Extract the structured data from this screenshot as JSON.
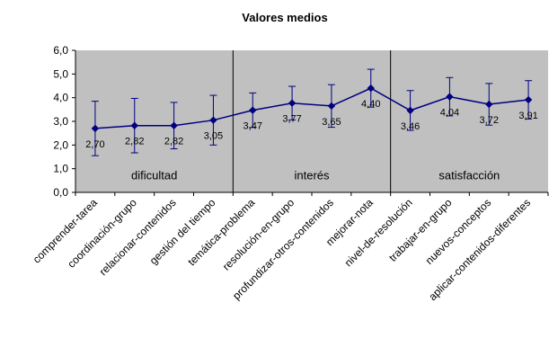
{
  "chart_data": {
    "type": "line",
    "title": "Valores medios",
    "xlabel": "",
    "ylabel": "",
    "ylim": [
      0,
      6
    ],
    "yticks": [
      "0,0",
      "1,0",
      "2,0",
      "3,0",
      "4,0",
      "5,0",
      "6,0"
    ],
    "ytick_values": [
      0,
      1,
      2,
      3,
      4,
      5,
      6
    ],
    "grid": false,
    "categories": [
      "comprender-tarea",
      "coordinación-grupo",
      "relacionar-contenidos",
      "gestión del tiempo",
      "temática-problema",
      "resolución-en-grupo",
      "profundizar-otros-contenidos",
      "mejorar-nota",
      "nivel-de-resolución",
      "trabajar-en-grupo",
      "nuevos-conceptos",
      "aplicar-contenidos-diferentes"
    ],
    "series": [
      {
        "values": [
          2.7,
          2.82,
          2.82,
          3.05,
          3.47,
          3.77,
          3.65,
          4.4,
          3.46,
          4.04,
          3.72,
          3.91
        ],
        "error_upper": [
          3.85,
          3.97,
          3.8,
          4.1,
          4.2,
          4.48,
          4.55,
          5.2,
          4.3,
          4.85,
          4.6,
          4.72
        ],
        "error_lower": [
          1.55,
          1.67,
          1.84,
          2.0,
          2.74,
          3.06,
          2.75,
          3.6,
          2.62,
          3.23,
          2.84,
          3.1
        ]
      }
    ],
    "data_labels": [
      "2,70",
      "2,82",
      "2,82",
      "3,05",
      "3,47",
      "3,77",
      "3,65",
      "4,40",
      "3,46",
      "4,04",
      "3,72",
      "3,91"
    ],
    "groups": [
      {
        "label": "dificultad",
        "start": 0,
        "end": 3
      },
      {
        "label": "interés",
        "start": 4,
        "end": 7
      },
      {
        "label": "satisfacción",
        "start": 8,
        "end": 11
      }
    ],
    "colors": {
      "plot_bg": "#c0c0c0",
      "series": "#000080",
      "axis": "#000000"
    }
  }
}
